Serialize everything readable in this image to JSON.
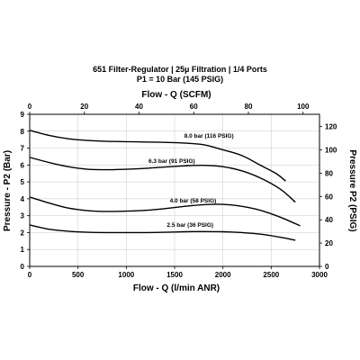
{
  "chart_data": {
    "type": "line",
    "title": "651 Filter-Regulator | 25µ Filtration | 1/4 Ports",
    "subtitle": "P1 = 10 Bar (145 PSIG)",
    "xlabel": "Flow - Q (l/min ANR)",
    "x2label": "Flow - Q (SCFM)",
    "ylabel": "Pressure - P2 (Bar)",
    "y2label": "Pressure P2 (PSIG)",
    "xlim": [
      0,
      3000
    ],
    "ylim": [
      0,
      9
    ],
    "x2lim": [
      0,
      106
    ],
    "y2lim": [
      0,
      130.5
    ],
    "x_ticks": [
      "0",
      "500",
      "1000",
      "1500",
      "2000",
      "2500",
      "3000"
    ],
    "y_ticks": [
      "0",
      "1",
      "2",
      "3",
      "4",
      "5",
      "6",
      "7",
      "8",
      "9"
    ],
    "x2_ticks": [
      "0",
      "20",
      "40",
      "60",
      "80",
      "100"
    ],
    "y2_ticks": [
      "0",
      "20",
      "40",
      "60",
      "80",
      "100",
      "120"
    ],
    "grid": true,
    "series": [
      {
        "name": "8.0 bar (116 PSIG)",
        "x": [
          0,
          200,
          400,
          600,
          800,
          1000,
          1200,
          1400,
          1600,
          1800,
          2000,
          2200,
          2400,
          2550,
          2650
        ],
        "y": [
          8.05,
          7.75,
          7.55,
          7.45,
          7.4,
          7.38,
          7.36,
          7.34,
          7.3,
          7.2,
          6.9,
          6.55,
          5.95,
          5.5,
          5.05
        ]
      },
      {
        "name": "6.3 bar (91 PSIG)",
        "x": [
          0,
          200,
          400,
          600,
          800,
          1000,
          1200,
          1400,
          1600,
          1800,
          2000,
          2200,
          2400,
          2600,
          2750
        ],
        "y": [
          6.45,
          6.15,
          5.9,
          5.75,
          5.72,
          5.75,
          5.8,
          5.88,
          5.95,
          5.98,
          5.9,
          5.65,
          5.2,
          4.55,
          3.8
        ]
      },
      {
        "name": "4.0 bar (58 PSIG)",
        "x": [
          0,
          200,
          400,
          600,
          800,
          1000,
          1200,
          1400,
          1600,
          1800,
          2000,
          2200,
          2400,
          2600,
          2800
        ],
        "y": [
          4.1,
          3.75,
          3.45,
          3.3,
          3.25,
          3.27,
          3.32,
          3.42,
          3.55,
          3.65,
          3.67,
          3.55,
          3.3,
          2.9,
          2.4
        ]
      },
      {
        "name": "2.5 bar (36 PSIG)",
        "x": [
          0,
          200,
          400,
          600,
          800,
          1000,
          1200,
          1400,
          1600,
          1800,
          2000,
          2200,
          2400,
          2600,
          2750
        ],
        "y": [
          2.45,
          2.2,
          2.08,
          2.02,
          2.0,
          2.0,
          2.0,
          2.02,
          2.05,
          2.06,
          2.05,
          2.0,
          1.9,
          1.72,
          1.55
        ]
      }
    ]
  }
}
